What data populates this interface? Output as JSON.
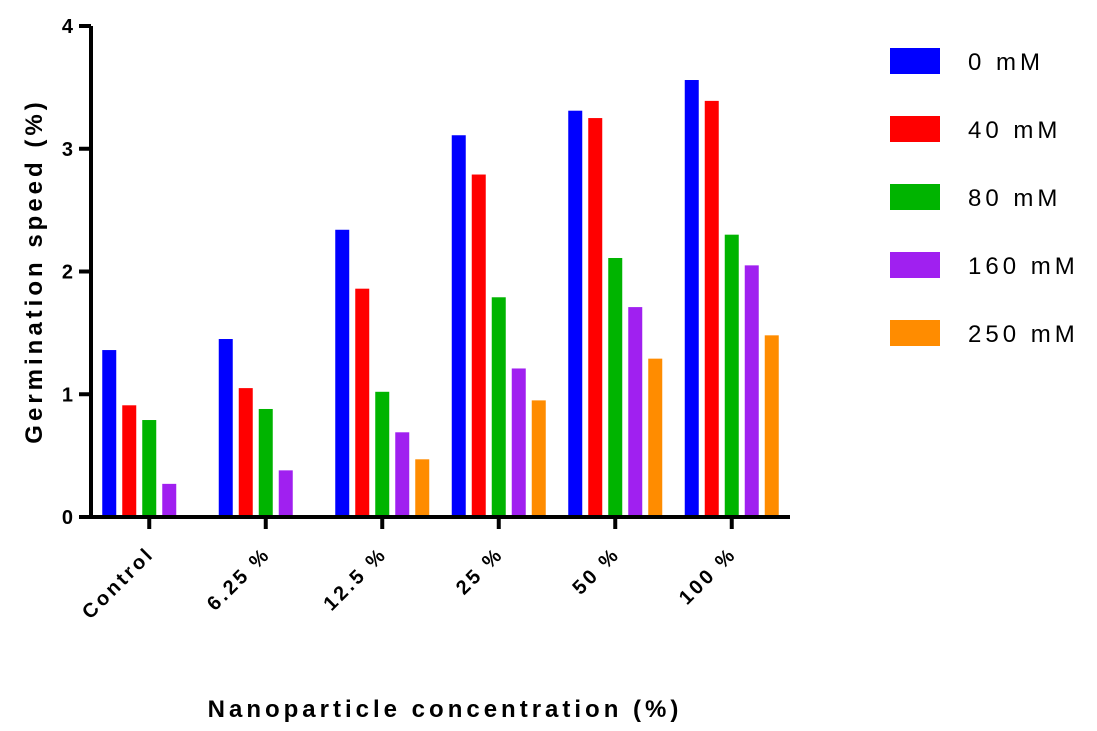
{
  "chart_data": {
    "type": "bar",
    "title": "",
    "xlabel": "Nanoparticle concentration (%)",
    "ylabel": "Germination speed (%)",
    "ylim": [
      0,
      4
    ],
    "yticks": [
      "0",
      "1",
      "2",
      "3",
      "4"
    ],
    "grid": false,
    "legend_position": "right",
    "categories": [
      "Control",
      "6.25 %",
      "12.5 %",
      "25 %",
      "50 %",
      "100 %"
    ],
    "series": [
      {
        "name": "0 mM",
        "color": "#0000ff",
        "values": [
          1.36,
          1.45,
          2.34,
          3.11,
          3.31,
          3.56
        ]
      },
      {
        "name": "40 mM",
        "color": "#ff0000",
        "values": [
          0.91,
          1.05,
          1.86,
          2.79,
          3.25,
          3.39
        ]
      },
      {
        "name": "80 mM",
        "color": "#00b400",
        "values": [
          0.79,
          0.88,
          1.02,
          1.79,
          2.11,
          2.3
        ]
      },
      {
        "name": "160 mM",
        "color": "#a020f0",
        "values": [
          0.27,
          0.38,
          0.69,
          1.21,
          1.71,
          2.05
        ]
      },
      {
        "name": "250 mM",
        "color": "#ff8c00",
        "values": [
          0,
          0,
          0.47,
          0.95,
          1.29,
          1.48
        ]
      }
    ]
  }
}
